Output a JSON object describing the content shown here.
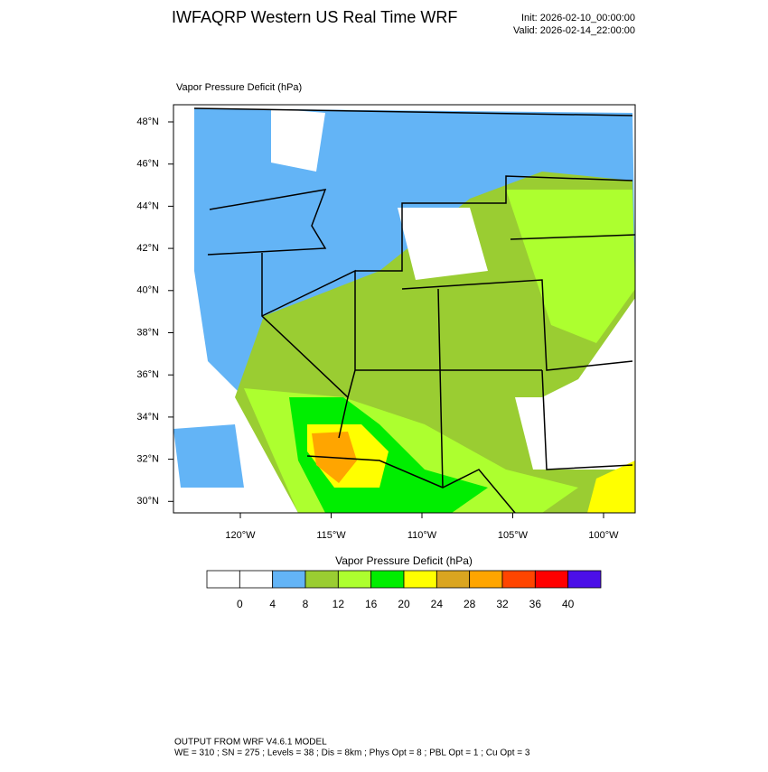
{
  "header": {
    "title": "IWFAQRP Western US Real Time WRF",
    "init": "Init: 2026-02-10_00:00:00",
    "valid": "Valid: 2026-02-14_22:00:00"
  },
  "map": {
    "title": "Vapor Pressure Deficit   (hPa)",
    "lat_labels": [
      "48°N",
      "46°N",
      "44°N",
      "42°N",
      "40°N",
      "38°N",
      "36°N",
      "34°N",
      "32°N",
      "30°N"
    ],
    "lon_labels": [
      "120°W",
      "115°W",
      "110°W",
      "105°W",
      "100°W"
    ]
  },
  "colorbar": {
    "title": "Vapor Pressure Deficit  (hPa)",
    "levels": [
      0,
      4,
      8,
      12,
      16,
      20,
      24,
      28,
      32,
      36,
      40
    ],
    "colors": [
      "#ffffff",
      "#ffffff",
      "#63b4f6",
      "#9acd32",
      "#adff2f",
      "#00ee00",
      "#ffff00",
      "#daa520",
      "#ffa500",
      "#ff4500",
      "#ff0000",
      "#4b0fe8"
    ]
  },
  "footer": {
    "line1": "OUTPUT FROM WRF V4.6.1 MODEL",
    "line2": "WE = 310 ; SN = 275 ; Levels = 38 ; Dis = 8km ; Phys Opt = 8 ; PBL Opt = 1 ; Cu Opt = 3"
  }
}
